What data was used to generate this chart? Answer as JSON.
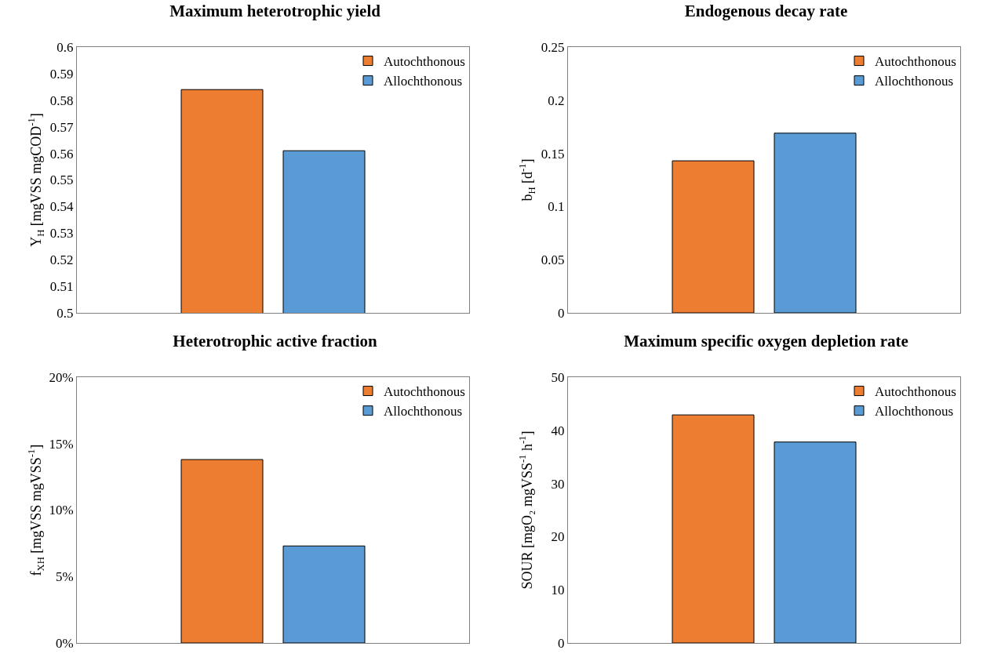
{
  "chart_data": [
    {
      "type": "bar",
      "title": "Maximum heterotrophic yield",
      "ylabel": "Y$_{H}$ [mgVSS mgCOD$^{-1}$]",
      "categories": [
        null
      ],
      "series": [
        {
          "name": "Autochthonous",
          "color": "#ed7d31",
          "values": [
            0.584
          ]
        },
        {
          "name": "Allochthonous",
          "color": "#5b9bd5",
          "values": [
            0.561
          ]
        }
      ],
      "ylim": [
        0.5,
        0.6
      ],
      "yticks": [
        0.5,
        0.51,
        0.52,
        0.53,
        0.54,
        0.55,
        0.56,
        0.57,
        0.58,
        0.59,
        0.6
      ],
      "legend": "top right"
    },
    {
      "type": "bar",
      "title": "Endogenous decay rate",
      "ylabel": "b$_{H}$ [d$^{-1}$]",
      "categories": [
        null
      ],
      "series": [
        {
          "name": "Autochthonous",
          "color": "#ed7d31",
          "values": [
            0.143
          ]
        },
        {
          "name": "Allochthonous",
          "color": "#5b9bd5",
          "values": [
            0.169
          ]
        }
      ],
      "ylim": [
        0,
        0.25
      ],
      "yticks": [
        0,
        0.05,
        0.1,
        0.15,
        0.2,
        0.25
      ],
      "legend": "top right"
    },
    {
      "type": "bar",
      "title": "Heterotrophic active fraction",
      "ylabel": "f$_{XH}$ [mgVSS mgVSS$^{-1}$]",
      "categories": [
        null
      ],
      "series": [
        {
          "name": "Autochthonous",
          "color": "#ed7d31",
          "values": [
            13.8
          ]
        },
        {
          "name": "Allochthonous",
          "color": "#5b9bd5",
          "values": [
            7.3
          ]
        }
      ],
      "ylim": [
        0,
        20
      ],
      "yticks": [
        {
          "value": 0,
          "label": "0%"
        },
        {
          "value": 5,
          "label": "5%"
        },
        {
          "value": 10,
          "label": "10%"
        },
        {
          "value": 15,
          "label": "15%"
        },
        {
          "value": 20,
          "label": "20%"
        }
      ],
      "legend": "top right"
    },
    {
      "type": "bar",
      "title": "Maximum specific oxygen depletion rate",
      "ylabel": "SOUR [mgO₂ mgVSS$^{-1}$ h$^{-1}$]",
      "categories": [
        null
      ],
      "series": [
        {
          "name": "Autochthonous",
          "color": "#ed7d31",
          "values": [
            42.9
          ]
        },
        {
          "name": "Allochthonous",
          "color": "#5b9bd5",
          "values": [
            37.8
          ]
        }
      ],
      "ylim": [
        0,
        50
      ],
      "yticks": [
        0,
        10,
        20,
        30,
        40,
        50
      ],
      "legend": "top right"
    }
  ]
}
